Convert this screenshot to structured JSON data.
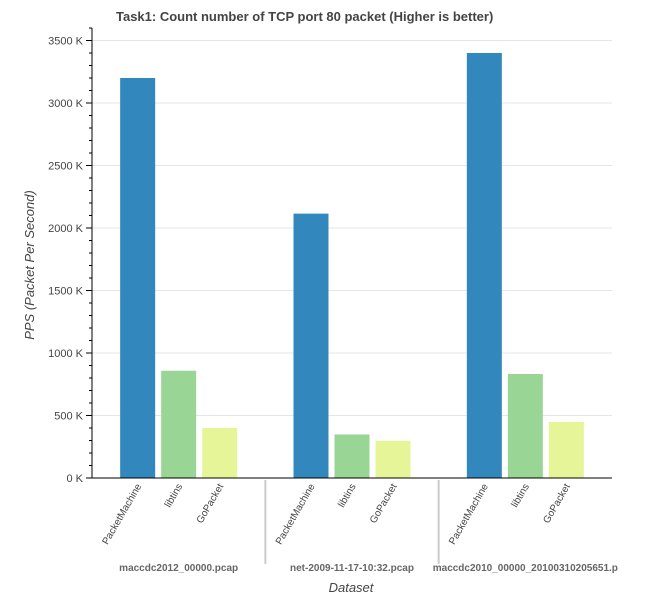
{
  "chart_data": {
    "type": "bar",
    "title": "Task1: Count number of TCP port 80 packet (Higher is better)",
    "xlabel": "Dataset",
    "ylabel": "PPS (Packet Per Second)",
    "ylim": [
      0,
      3600
    ],
    "yticks": [
      0,
      500,
      1000,
      1500,
      2000,
      2500,
      3000,
      3500
    ],
    "ytick_labels": [
      "0 K",
      "500 K",
      "1000 K",
      "1500 K",
      "2000 K",
      "2500 K",
      "3000 K",
      "3500 K"
    ],
    "grid": true,
    "value_unit": "K packets per second",
    "groups": [
      "maccdc2012_00000.pcap",
      "net-2009-11-17-10:32.pcap",
      "maccdc2010_00000_20100310205651.p"
    ],
    "series": [
      {
        "name": "PacketMachine",
        "color": "#3288bd",
        "values": [
          3200,
          2115,
          3400
        ]
      },
      {
        "name": "libtins",
        "color": "#99d594",
        "values": [
          858,
          348,
          832
        ]
      },
      {
        "name": "GoPacket",
        "color": "#e6f598",
        "values": [
          400,
          298,
          448
        ]
      }
    ]
  }
}
